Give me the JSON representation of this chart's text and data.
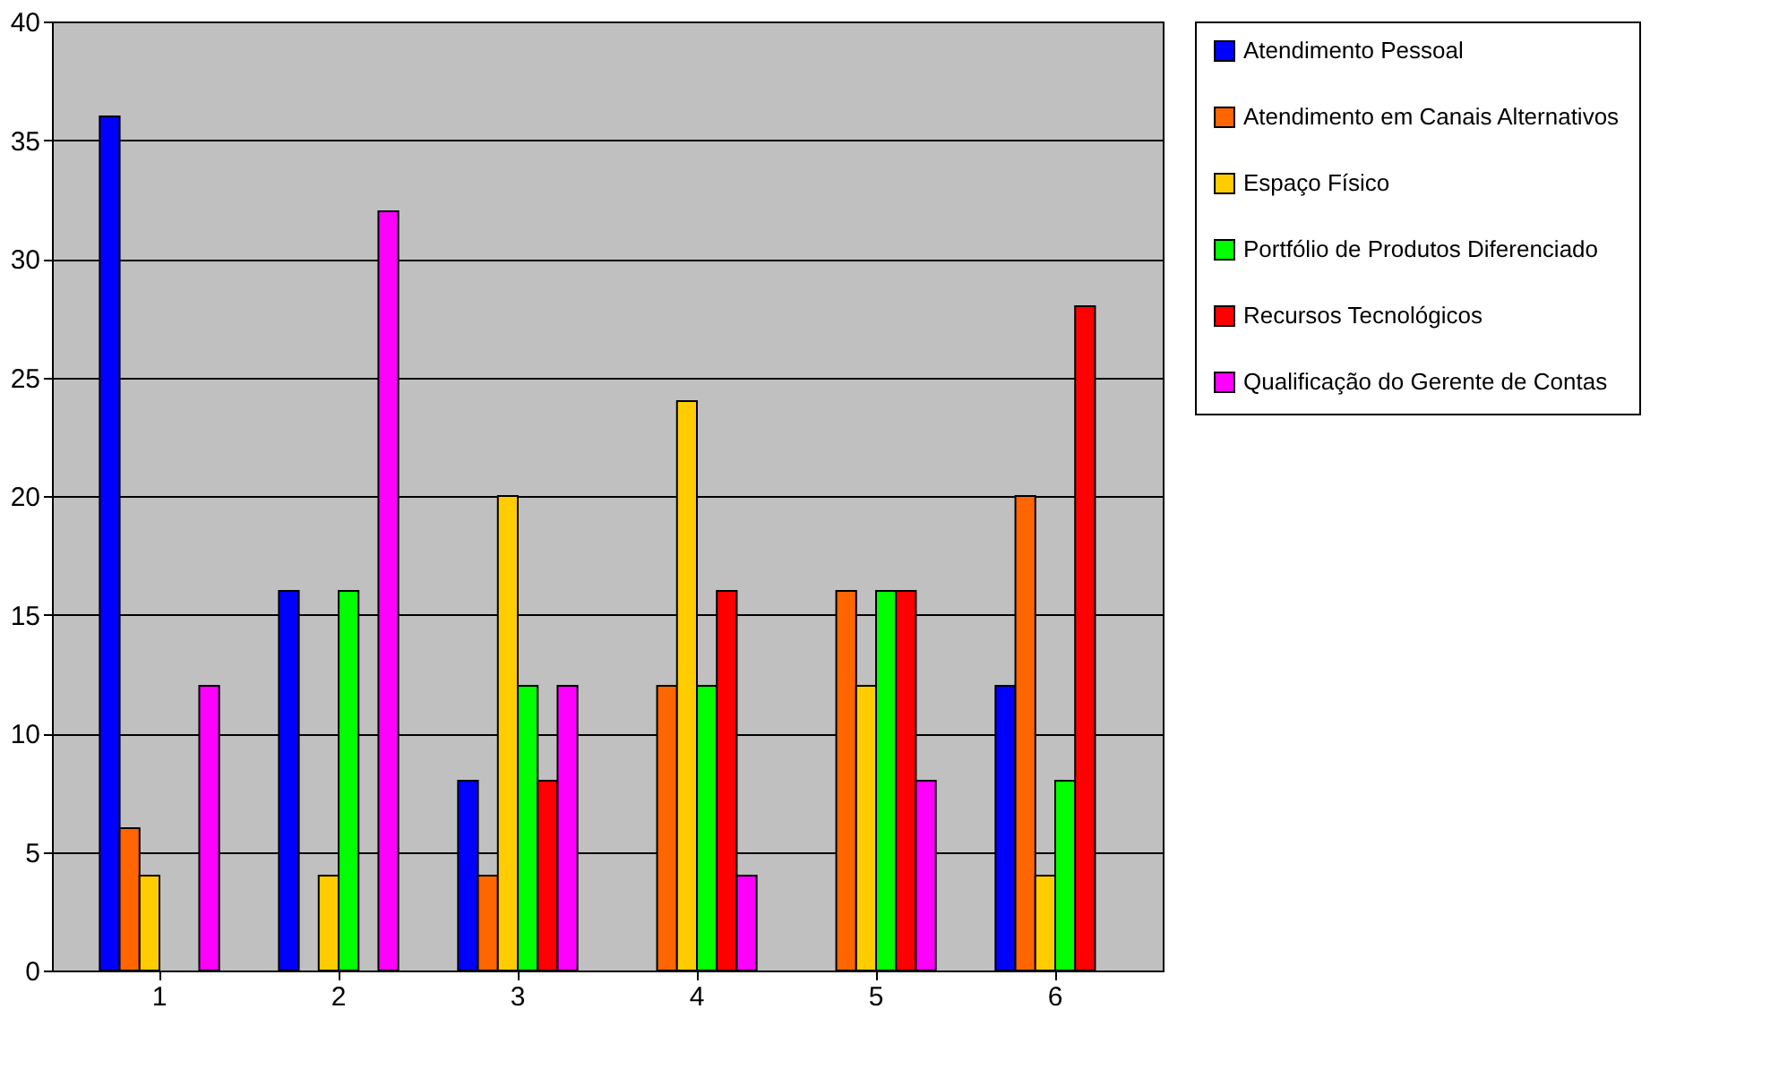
{
  "chart_data": {
    "type": "bar",
    "categories": [
      "1",
      "2",
      "3",
      "4",
      "5",
      "6"
    ],
    "series": [
      {
        "name": "Atendimento Pessoal",
        "color": "#0000ff",
        "values": [
          36,
          16,
          8,
          null,
          null,
          12
        ]
      },
      {
        "name": "Atendimento em Canais Alternativos",
        "color": "#ff6600",
        "values": [
          6,
          null,
          4,
          12,
          16,
          20
        ]
      },
      {
        "name": "Espaço Físico",
        "color": "#ffcc00",
        "values": [
          4,
          4,
          20,
          24,
          12,
          4
        ]
      },
      {
        "name": "Portfólio de Produtos Diferenciado",
        "color": "#00ff00",
        "values": [
          null,
          16,
          12,
          12,
          16,
          8
        ]
      },
      {
        "name": "Recursos Tecnológicos",
        "color": "#ff0000",
        "values": [
          null,
          null,
          8,
          16,
          16,
          28
        ]
      },
      {
        "name": "Qualificação do Gerente de Contas",
        "color": "#ff00ff",
        "values": [
          12,
          32,
          12,
          4,
          8,
          null
        ]
      }
    ],
    "ylim": [
      0,
      40
    ],
    "yticks": [
      0,
      5,
      10,
      15,
      20,
      25,
      30,
      35,
      40
    ],
    "grid": "y",
    "legend": "right"
  }
}
